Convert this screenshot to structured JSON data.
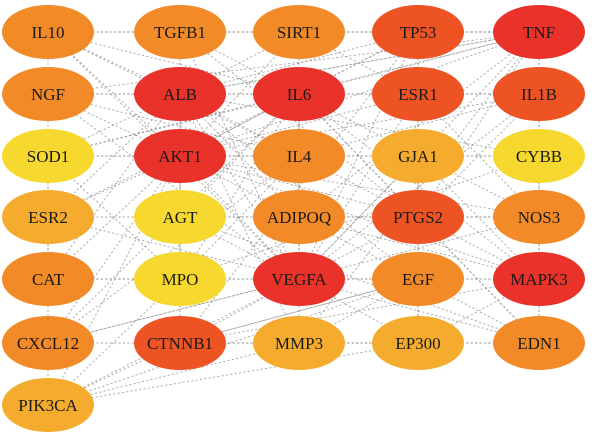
{
  "colors": {
    "red": "#e8322a",
    "red_orange": "#ee5324",
    "orange": "#f28a28",
    "orange_yellow": "#f5ac2e",
    "yellow": "#f6d82e",
    "edge": "#8a8a8a"
  },
  "nodes": [
    {
      "id": "IL10",
      "label": "IL10",
      "color": "orange"
    },
    {
      "id": "TGFB1",
      "label": "TGFB1",
      "color": "orange"
    },
    {
      "id": "SIRT1",
      "label": "SIRT1",
      "color": "orange"
    },
    {
      "id": "TP53",
      "label": "TP53",
      "color": "red_orange"
    },
    {
      "id": "TNF",
      "label": "TNF",
      "color": "red"
    },
    {
      "id": "NGF",
      "label": "NGF",
      "color": "orange"
    },
    {
      "id": "ALB",
      "label": "ALB",
      "color": "red"
    },
    {
      "id": "IL6",
      "label": "IL6",
      "color": "red"
    },
    {
      "id": "ESR1",
      "label": "ESR1",
      "color": "red_orange"
    },
    {
      "id": "IL1B",
      "label": "IL1B",
      "color": "red_orange"
    },
    {
      "id": "SOD1",
      "label": "SOD1",
      "color": "yellow"
    },
    {
      "id": "AKT1",
      "label": "AKT1",
      "color": "red"
    },
    {
      "id": "IL4",
      "label": "IL4",
      "color": "orange"
    },
    {
      "id": "GJA1",
      "label": "GJA1",
      "color": "orange_yellow"
    },
    {
      "id": "CYBB",
      "label": "CYBB",
      "color": "yellow"
    },
    {
      "id": "ESR2",
      "label": "ESR2",
      "color": "orange_yellow"
    },
    {
      "id": "AGT",
      "label": "AGT",
      "color": "yellow"
    },
    {
      "id": "ADIPOQ",
      "label": "ADIPOQ",
      "color": "orange"
    },
    {
      "id": "PTGS2",
      "label": "PTGS2",
      "color": "red_orange"
    },
    {
      "id": "NOS3",
      "label": "NOS3",
      "color": "orange"
    },
    {
      "id": "CAT",
      "label": "CAT",
      "color": "orange"
    },
    {
      "id": "MPO",
      "label": "MPO",
      "color": "yellow"
    },
    {
      "id": "VEGFA",
      "label": "VEGFA",
      "color": "red"
    },
    {
      "id": "EGF",
      "label": "EGF",
      "color": "orange"
    },
    {
      "id": "MAPK3",
      "label": "MAPK3",
      "color": "red"
    },
    {
      "id": "CXCL12",
      "label": "CXCL12",
      "color": "orange"
    },
    {
      "id": "CTNNB1",
      "label": "CTNNB1",
      "color": "red_orange"
    },
    {
      "id": "MMP3",
      "label": "MMP3",
      "color": "orange_yellow"
    },
    {
      "id": "EP300",
      "label": "EP300",
      "color": "orange_yellow"
    },
    {
      "id": "EDN1",
      "label": "EDN1",
      "color": "orange"
    },
    {
      "id": "PIK3CA",
      "label": "PIK3CA",
      "color": "orange_yellow"
    }
  ],
  "edges": [
    [
      "IL10",
      "TGFB1"
    ],
    [
      "TGFB1",
      "SIRT1"
    ],
    [
      "SIRT1",
      "TP53"
    ],
    [
      "TP53",
      "TNF"
    ],
    [
      "NGF",
      "ALB"
    ],
    [
      "ALB",
      "IL6"
    ],
    [
      "IL6",
      "ESR1"
    ],
    [
      "ESR1",
      "IL1B"
    ],
    [
      "SOD1",
      "AKT1"
    ],
    [
      "AKT1",
      "IL4"
    ],
    [
      "IL4",
      "GJA1"
    ],
    [
      "GJA1",
      "CYBB"
    ],
    [
      "ESR2",
      "AGT"
    ],
    [
      "AGT",
      "ADIPOQ"
    ],
    [
      "ADIPOQ",
      "PTGS2"
    ],
    [
      "PTGS2",
      "NOS3"
    ],
    [
      "CAT",
      "MPO"
    ],
    [
      "MPO",
      "VEGFA"
    ],
    [
      "VEGFA",
      "EGF"
    ],
    [
      "EGF",
      "MAPK3"
    ],
    [
      "CXCL12",
      "CTNNB1"
    ],
    [
      "CTNNB1",
      "MMP3"
    ],
    [
      "MMP3",
      "EP300"
    ],
    [
      "EP300",
      "EDN1"
    ],
    [
      "IL10",
      "NGF"
    ],
    [
      "NGF",
      "SOD1"
    ],
    [
      "SOD1",
      "ESR2"
    ],
    [
      "ESR2",
      "CAT"
    ],
    [
      "CAT",
      "CXCL12"
    ],
    [
      "CXCL12",
      "PIK3CA"
    ],
    [
      "TGFB1",
      "ALB"
    ],
    [
      "ALB",
      "AKT1"
    ],
    [
      "AKT1",
      "AGT"
    ],
    [
      "AGT",
      "MPO"
    ],
    [
      "MPO",
      "CTNNB1"
    ],
    [
      "SIRT1",
      "IL6"
    ],
    [
      "IL6",
      "IL4"
    ],
    [
      "IL4",
      "ADIPOQ"
    ],
    [
      "ADIPOQ",
      "VEGFA"
    ],
    [
      "VEGFA",
      "MMP3"
    ],
    [
      "TP53",
      "ESR1"
    ],
    [
      "ESR1",
      "GJA1"
    ],
    [
      "GJA1",
      "PTGS2"
    ],
    [
      "PTGS2",
      "EGF"
    ],
    [
      "EGF",
      "EP300"
    ],
    [
      "TNF",
      "IL1B"
    ],
    [
      "IL1B",
      "CYBB"
    ],
    [
      "CYBB",
      "NOS3"
    ],
    [
      "NOS3",
      "MAPK3"
    ],
    [
      "MAPK3",
      "EDN1"
    ],
    [
      "IL10",
      "ALB"
    ],
    [
      "IL10",
      "IL6"
    ],
    [
      "IL10",
      "AKT1"
    ],
    [
      "IL10",
      "TNF"
    ],
    [
      "IL10",
      "IL4"
    ],
    [
      "IL10",
      "VEGFA"
    ],
    [
      "TGFB1",
      "IL6"
    ],
    [
      "TGFB1",
      "AKT1"
    ],
    [
      "TGFB1",
      "TNF"
    ],
    [
      "TGFB1",
      "VEGFA"
    ],
    [
      "TGFB1",
      "PTGS2"
    ],
    [
      "SIRT1",
      "AKT1"
    ],
    [
      "SIRT1",
      "TNF"
    ],
    [
      "SIRT1",
      "ALB"
    ],
    [
      "SIRT1",
      "VEGFA"
    ],
    [
      "SIRT1",
      "ESR1"
    ],
    [
      "TP53",
      "AKT1"
    ],
    [
      "TP53",
      "IL6"
    ],
    [
      "TP53",
      "ALB"
    ],
    [
      "TP53",
      "VEGFA"
    ],
    [
      "TP53",
      "CTNNB1"
    ],
    [
      "TP53",
      "EP300"
    ],
    [
      "TNF",
      "ALB"
    ],
    [
      "TNF",
      "AKT1"
    ],
    [
      "TNF",
      "IL6"
    ],
    [
      "TNF",
      "VEGFA"
    ],
    [
      "TNF",
      "PTGS2"
    ],
    [
      "TNF",
      "MAPK3"
    ],
    [
      "NGF",
      "IL6"
    ],
    [
      "NGF",
      "AKT1"
    ],
    [
      "NGF",
      "TNF"
    ],
    [
      "NGF",
      "VEGFA"
    ],
    [
      "NGF",
      "IL4"
    ],
    [
      "ALB",
      "TNF"
    ],
    [
      "ALB",
      "VEGFA"
    ],
    [
      "ALB",
      "IL1B"
    ],
    [
      "ALB",
      "ADIPOQ"
    ],
    [
      "ALB",
      "PTGS2"
    ],
    [
      "ALB",
      "EGF"
    ],
    [
      "ALB",
      "MMP3"
    ],
    [
      "IL6",
      "AKT1"
    ],
    [
      "IL6",
      "VEGFA"
    ],
    [
      "IL6",
      "IL1B"
    ],
    [
      "IL6",
      "PTGS2"
    ],
    [
      "IL6",
      "MAPK3"
    ],
    [
      "IL6",
      "EDN1"
    ],
    [
      "ESR1",
      "AKT1"
    ],
    [
      "ESR1",
      "VEGFA"
    ],
    [
      "ESR1",
      "EGF"
    ],
    [
      "ESR1",
      "NOS3"
    ],
    [
      "IL1B",
      "AKT1"
    ],
    [
      "IL1B",
      "VEGFA"
    ],
    [
      "IL1B",
      "PTGS2"
    ],
    [
      "IL1B",
      "MAPK3"
    ],
    [
      "SOD1",
      "ALB"
    ],
    [
      "SOD1",
      "IL6"
    ],
    [
      "SOD1",
      "CAT"
    ],
    [
      "SOD1",
      "TNF"
    ],
    [
      "SOD1",
      "MPO"
    ],
    [
      "AKT1",
      "VEGFA"
    ],
    [
      "AKT1",
      "MAPK3"
    ],
    [
      "AKT1",
      "PTGS2"
    ],
    [
      "AKT1",
      "EGF"
    ],
    [
      "AKT1",
      "CTNNB1"
    ],
    [
      "AKT1",
      "NOS3"
    ],
    [
      "AKT1",
      "ESR2"
    ],
    [
      "IL4",
      "VEGFA"
    ],
    [
      "IL4",
      "IL1B"
    ],
    [
      "IL4",
      "MPO"
    ],
    [
      "IL4",
      "CXCL12"
    ],
    [
      "GJA1",
      "VEGFA"
    ],
    [
      "GJA1",
      "EGF"
    ],
    [
      "GJA1",
      "MAPK3"
    ],
    [
      "CYBB",
      "MPO"
    ],
    [
      "CYBB",
      "ALB"
    ],
    [
      "CYBB",
      "SOD1"
    ],
    [
      "ESR2",
      "ALB"
    ],
    [
      "ESR2",
      "VEGFA"
    ],
    [
      "ESR2",
      "IL6"
    ],
    [
      "AGT",
      "VEGFA"
    ],
    [
      "AGT",
      "NOS3"
    ],
    [
      "AGT",
      "EDN1"
    ],
    [
      "AGT",
      "IL6"
    ],
    [
      "ADIPOQ",
      "MAPK3"
    ],
    [
      "ADIPOQ",
      "IL6"
    ],
    [
      "ADIPOQ",
      "TNF"
    ],
    [
      "PTGS2",
      "MAPK3"
    ],
    [
      "PTGS2",
      "VEGFA"
    ],
    [
      "PTGS2",
      "EDN1"
    ],
    [
      "NOS3",
      "VEGFA"
    ],
    [
      "NOS3",
      "EDN1"
    ],
    [
      "NOS3",
      "IL6"
    ],
    [
      "CAT",
      "ALB"
    ],
    [
      "CAT",
      "AKT1"
    ],
    [
      "CAT",
      "VEGFA"
    ],
    [
      "MPO",
      "ALB"
    ],
    [
      "MPO",
      "IL6"
    ],
    [
      "VEGFA",
      "MAPK3"
    ],
    [
      "VEGFA",
      "EDN1"
    ],
    [
      "VEGFA",
      "CXCL12"
    ],
    [
      "VEGFA",
      "EP300"
    ],
    [
      "EGF",
      "EDN1"
    ],
    [
      "EGF",
      "MMP3"
    ],
    [
      "EGF",
      "CTNNB1"
    ],
    [
      "MAPK3",
      "EP300"
    ],
    [
      "MAPK3",
      "CTNNB1"
    ],
    [
      "CXCL12",
      "VEGFA"
    ],
    [
      "CXCL12",
      "AKT1"
    ],
    [
      "CXCL12",
      "IL6"
    ],
    [
      "CTNNB1",
      "VEGFA"
    ],
    [
      "CTNNB1",
      "EP300"
    ],
    [
      "CTNNB1",
      "EGF"
    ],
    [
      "MMP3",
      "EDN1"
    ],
    [
      "MMP3",
      "TNF"
    ],
    [
      "EP300",
      "ESR1"
    ],
    [
      "PIK3CA",
      "AKT1"
    ],
    [
      "PIK3CA",
      "CTNNB1"
    ],
    [
      "PIK3CA",
      "MMP3"
    ],
    [
      "PIK3CA",
      "VEGFA"
    ],
    [
      "PIK3CA",
      "EP300"
    ],
    [
      "PIK3CA",
      "EGF"
    ],
    [
      "PIK3CA",
      "MPO"
    ]
  ]
}
